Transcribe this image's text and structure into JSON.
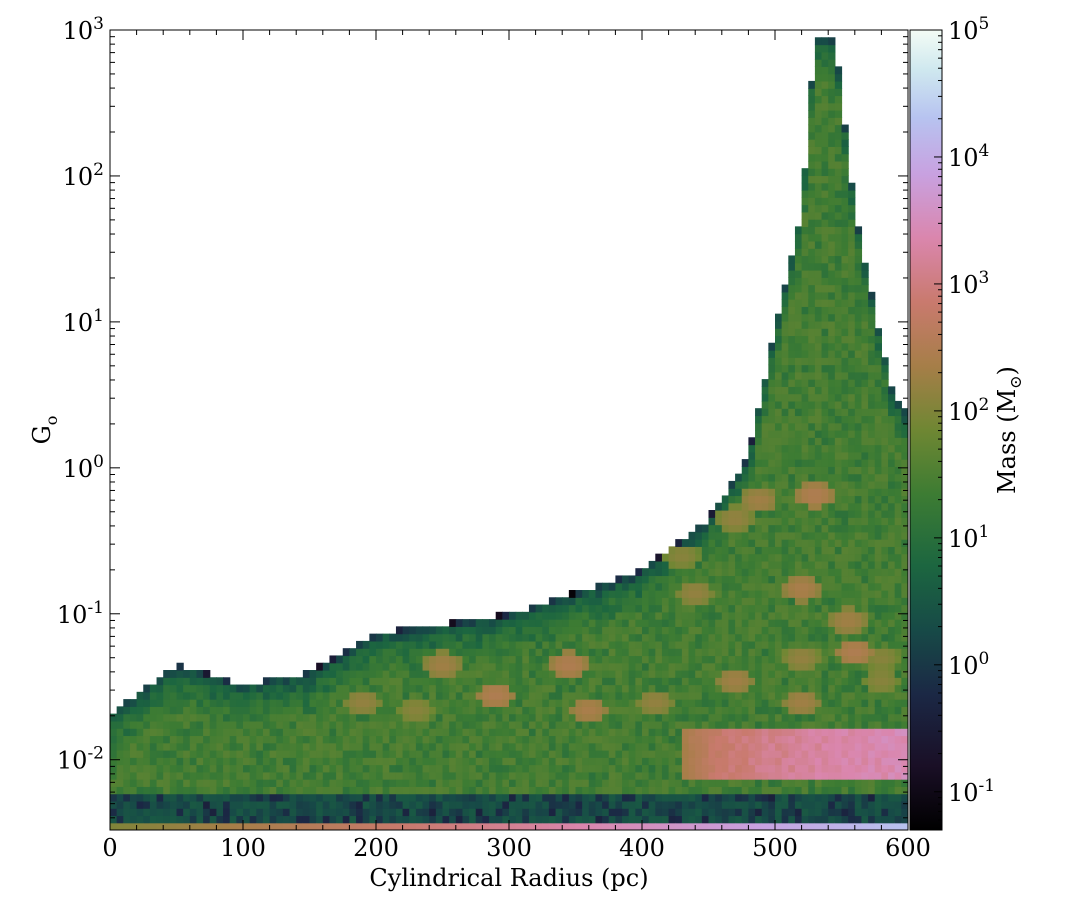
{
  "chart_data": {
    "type": "heatmap",
    "xlabel": "Cylindrical Radius  (pc)",
    "ylabel": "G",
    "ylabel_subscript": "o",
    "xlim": [
      0,
      600
    ],
    "ylim": [
      0.0033,
      1000
    ],
    "yscale": "log",
    "x_ticks": [
      0,
      100,
      200,
      300,
      400,
      500,
      600
    ],
    "y_ticks": [
      {
        "value": 0.01,
        "base": "10",
        "exp": "-2"
      },
      {
        "value": 0.1,
        "base": "10",
        "exp": "-1"
      },
      {
        "value": 1,
        "base": "10",
        "exp": "0"
      },
      {
        "value": 10,
        "base": "10",
        "exp": "1"
      },
      {
        "value": 100,
        "base": "10",
        "exp": "2"
      },
      {
        "value": 1000,
        "base": "10",
        "exp": "3"
      }
    ],
    "colorbar": {
      "label": "Mass (M",
      "label_symbol": "⊙",
      "label_close": ")",
      "scale": "log",
      "range": [
        0.05,
        100000
      ],
      "colormap": "cubehelix",
      "ticks": [
        {
          "value": 0.1,
          "base": "10",
          "exp": "-1"
        },
        {
          "value": 1,
          "base": "10",
          "exp": "0"
        },
        {
          "value": 10,
          "base": "10",
          "exp": "1"
        },
        {
          "value": 100,
          "base": "10",
          "exp": "2"
        },
        {
          "value": 1000,
          "base": "10",
          "exp": "3"
        },
        {
          "value": 10000,
          "base": "10",
          "exp": "4"
        },
        {
          "value": 100000,
          "base": "10",
          "exp": "5"
        }
      ]
    },
    "description_of_distribution": {
      "upper_envelope_G0": [
        [
          0,
          0.021
        ],
        [
          50,
          0.045
        ],
        [
          100,
          0.033
        ],
        [
          150,
          0.04
        ],
        [
          200,
          0.075
        ],
        [
          250,
          0.085
        ],
        [
          300,
          0.1
        ],
        [
          350,
          0.14
        ],
        [
          400,
          0.2
        ],
        [
          450,
          0.45
        ],
        [
          480,
          1.2
        ],
        [
          500,
          9
        ],
        [
          520,
          60
        ],
        [
          530,
          900
        ],
        [
          545,
          900
        ],
        [
          560,
          60
        ],
        [
          575,
          12
        ],
        [
          590,
          3
        ],
        [
          600,
          2.4
        ]
      ],
      "lower_envelope_G0": 0.0034,
      "bright_spots": [
        {
          "r": 530,
          "G0": 0.65,
          "mass": 300
        },
        {
          "r": 488,
          "G0": 0.6,
          "mass": 200
        },
        {
          "r": 470,
          "G0": 0.45,
          "mass": 150
        },
        {
          "r": 430,
          "G0": 0.25,
          "mass": 120
        },
        {
          "r": 440,
          "G0": 0.14,
          "mass": 150
        },
        {
          "r": 520,
          "G0": 0.15,
          "mass": 250
        },
        {
          "r": 555,
          "G0": 0.09,
          "mass": 200
        },
        {
          "r": 345,
          "G0": 0.045,
          "mass": 300
        },
        {
          "r": 290,
          "G0": 0.028,
          "mass": 300
        },
        {
          "r": 250,
          "G0": 0.045,
          "mass": 200
        },
        {
          "r": 190,
          "G0": 0.025,
          "mass": 150
        },
        {
          "r": 230,
          "G0": 0.022,
          "mass": 120
        },
        {
          "r": 360,
          "G0": 0.022,
          "mass": 250
        },
        {
          "r": 470,
          "G0": 0.035,
          "mass": 200
        },
        {
          "r": 410,
          "G0": 0.025,
          "mass": 150
        },
        {
          "r": 520,
          "G0": 0.025,
          "mass": 200
        },
        {
          "r": 580,
          "G0": 0.035,
          "mass": 120
        },
        {
          "r": 580,
          "G0": 0.05,
          "mass": 120
        },
        {
          "r": 520,
          "G0": 0.05,
          "mass": 150
        },
        {
          "r": 560,
          "G0": 0.055,
          "mass": 300
        }
      ],
      "high_mass_band": {
        "r_range": [
          430,
          600
        ],
        "G0_range": [
          0.007,
          0.017
        ],
        "mass": 3000
      },
      "bottom_row": {
        "G0": 0.0036,
        "mass_range": [
          100,
          20000
        ]
      }
    }
  }
}
